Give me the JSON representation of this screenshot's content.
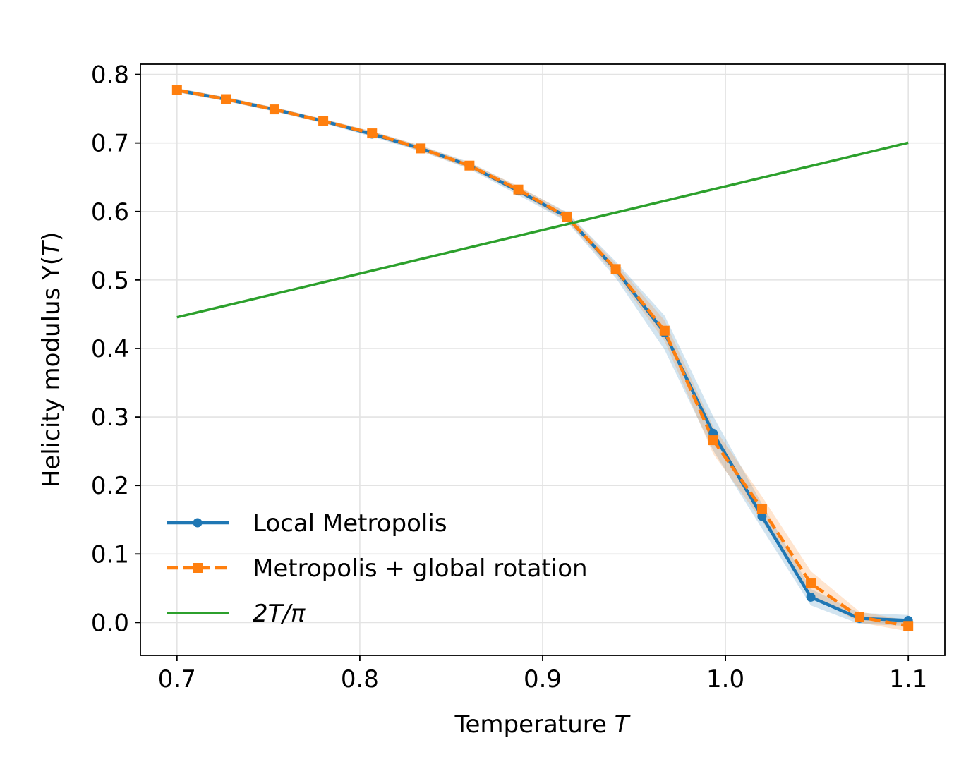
{
  "chart_data": {
    "type": "line",
    "title": "",
    "xlabel": "Temperature",
    "xlabel_var": "T",
    "ylabel": "Helicity modulus  Υ(",
    "ylabel_var": "T",
    "ylabel_close": ")",
    "xlim": [
      0.68,
      1.12
    ],
    "ylim": [
      -0.048,
      0.815
    ],
    "xticks": [
      0.7,
      0.8,
      0.9,
      1.0,
      1.1
    ],
    "xtick_labels": [
      "0.7",
      "0.8",
      "0.9",
      "1.0",
      "1.1"
    ],
    "yticks": [
      0.0,
      0.1,
      0.2,
      0.3,
      0.4,
      0.5,
      0.6,
      0.7,
      0.8
    ],
    "ytick_labels": [
      "0.0",
      "0.1",
      "0.2",
      "0.3",
      "0.4",
      "0.5",
      "0.6",
      "0.7",
      "0.8"
    ],
    "grid": true,
    "legend_position": "lower-left",
    "x": [
      0.7,
      0.7267,
      0.7533,
      0.78,
      0.8067,
      0.8333,
      0.86,
      0.8867,
      0.9133,
      0.94,
      0.9667,
      0.9933,
      1.02,
      1.0467,
      1.0733,
      1.1
    ],
    "series": [
      {
        "name": "Local Metropolis",
        "color": "#1f77b4",
        "style": "solid",
        "marker": "circle",
        "values": [
          0.777,
          0.764,
          0.749,
          0.732,
          0.713,
          0.692,
          0.667,
          0.63,
          0.592,
          0.515,
          0.423,
          0.276,
          0.155,
          0.037,
          0.006,
          0.003
        ],
        "error": [
          0.003,
          0.003,
          0.003,
          0.003,
          0.004,
          0.004,
          0.005,
          0.006,
          0.007,
          0.012,
          0.025,
          0.025,
          0.018,
          0.012,
          0.008,
          0.008
        ]
      },
      {
        "name": "Metropolis + global rotation",
        "color": "#ff7f0e",
        "style": "dashed",
        "marker": "square",
        "values": [
          0.777,
          0.764,
          0.749,
          0.732,
          0.714,
          0.692,
          0.667,
          0.632,
          0.592,
          0.516,
          0.426,
          0.266,
          0.166,
          0.057,
          0.008,
          -0.005
        ],
        "error": [
          0.003,
          0.003,
          0.003,
          0.003,
          0.003,
          0.004,
          0.004,
          0.005,
          0.006,
          0.008,
          0.015,
          0.02,
          0.018,
          0.018,
          0.008,
          0.008
        ]
      },
      {
        "name_prefix": "2",
        "name_var": "T",
        "name_suffix": "/π",
        "color": "#2ca02c",
        "style": "solid",
        "marker": "none",
        "x": [
          0.7,
          1.1
        ],
        "values": [
          0.4456,
          0.7003
        ]
      }
    ]
  }
}
